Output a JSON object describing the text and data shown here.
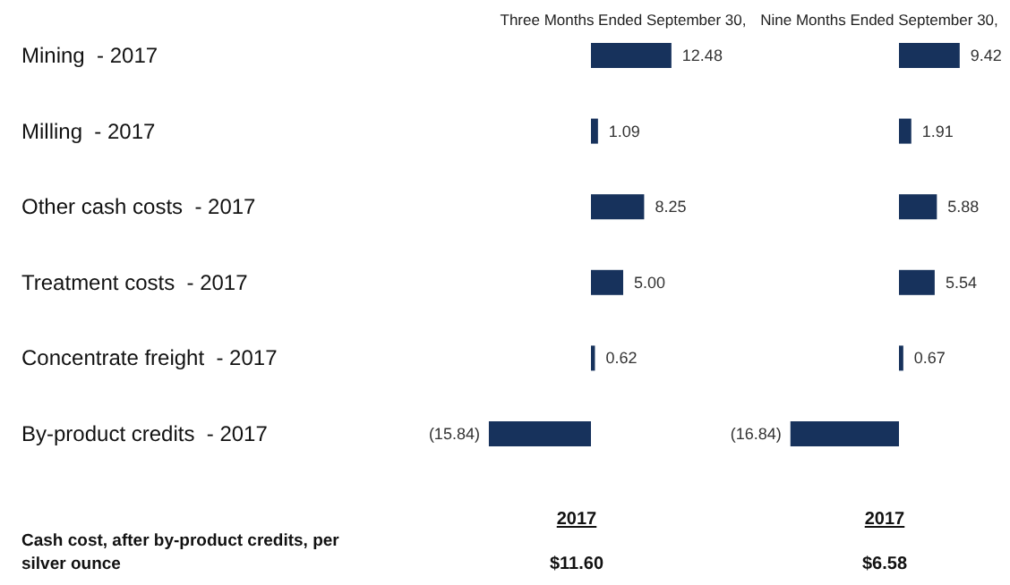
{
  "chart_data": [
    {
      "type": "bar",
      "orientation": "horizontal",
      "title": "Three Months Ended September 30,",
      "categories": [
        "Mining  - 2017",
        "Milling  - 2017",
        "Other cash costs  - 2017",
        "Treatment costs  - 2017",
        "Concentrate freight  - 2017",
        "By-product credits  - 2017"
      ],
      "values": [
        12.48,
        1.09,
        8.25,
        5.0,
        0.62,
        -15.84
      ],
      "value_labels": [
        "12.48",
        "1.09",
        "8.25",
        "5.00",
        "0.62",
        "(15.84)"
      ],
      "color": "#17325c",
      "annotations": [
        "2017",
        "$11.60",
        "Cash cost, after by-product credits, per silver ounce"
      ]
    },
    {
      "type": "bar",
      "orientation": "horizontal",
      "title": "Nine Months Ended September 30,",
      "categories": [
        null,
        null,
        null,
        null,
        null,
        null
      ],
      "values": [
        9.42,
        1.91,
        5.88,
        5.54,
        0.67,
        -16.84
      ],
      "value_labels": [
        "9.42",
        "1.91",
        "5.88",
        "5.54",
        "0.67",
        "(16.84)"
      ],
      "color": "#17325c",
      "annotations": [
        "2017",
        "$6.58"
      ]
    }
  ]
}
